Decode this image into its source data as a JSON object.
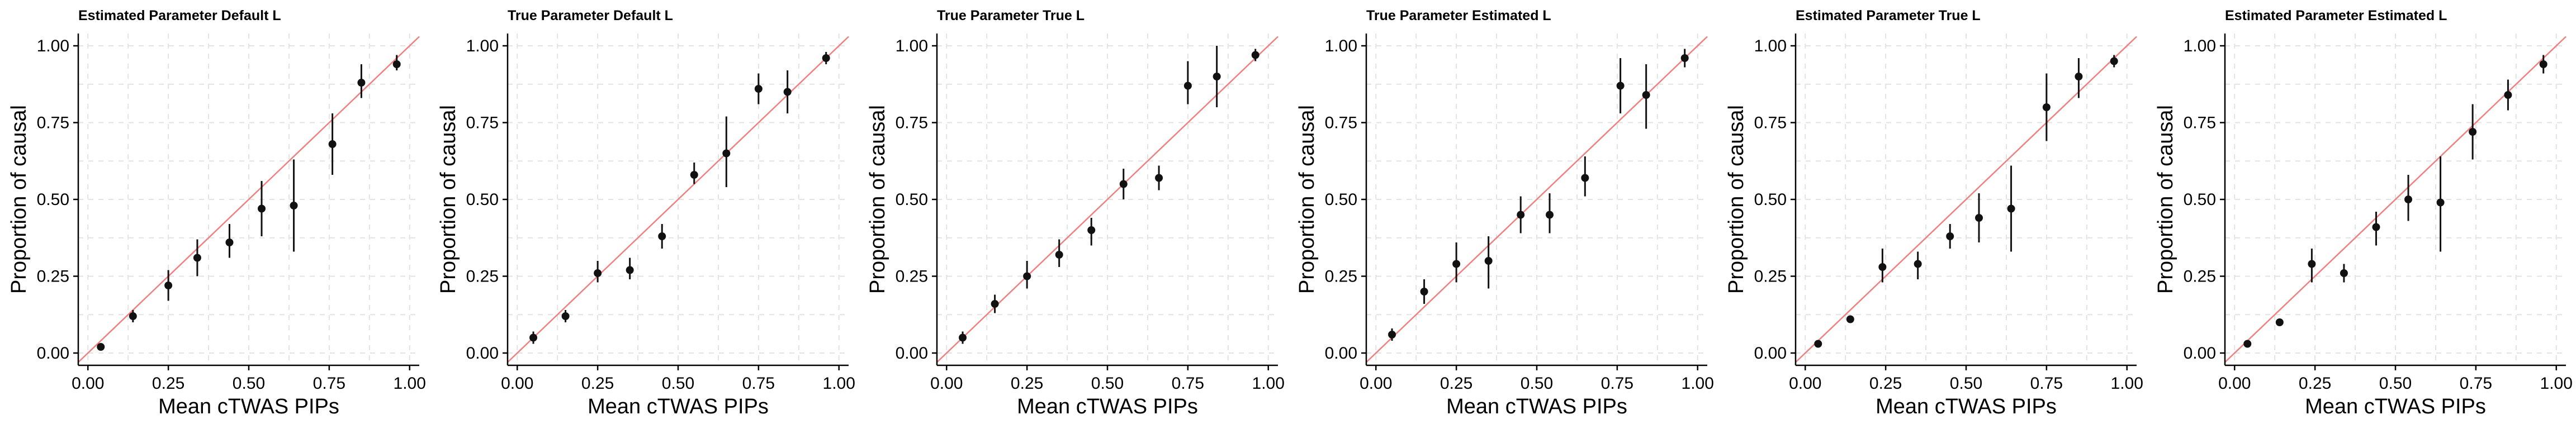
{
  "chart_data": [
    {
      "type": "scatter",
      "title": "Estimated Parameter Default L",
      "xlabel": "Mean cTWAS PIPs",
      "ylabel": "Proportion of causal",
      "xlim": [
        -0.03,
        1.03
      ],
      "ylim": [
        -0.04,
        1.04
      ],
      "xticks": [
        "0.00",
        "0.25",
        "0.50",
        "0.75",
        "1.00"
      ],
      "yticks": [
        "0.00",
        "0.25",
        "0.50",
        "0.75",
        "1.00"
      ],
      "grid": true,
      "reference_line": "y = x",
      "colors": {
        "points": "#111111",
        "reference_line": "#f08080",
        "grid": "#e3e3e3"
      },
      "points": [
        {
          "x": 0.04,
          "y": 0.02,
          "lo": 0.015,
          "hi": 0.025
        },
        {
          "x": 0.14,
          "y": 0.12,
          "lo": 0.1,
          "hi": 0.14
        },
        {
          "x": 0.25,
          "y": 0.22,
          "lo": 0.17,
          "hi": 0.27
        },
        {
          "x": 0.34,
          "y": 0.31,
          "lo": 0.25,
          "hi": 0.37
        },
        {
          "x": 0.44,
          "y": 0.36,
          "lo": 0.31,
          "hi": 0.42
        },
        {
          "x": 0.54,
          "y": 0.47,
          "lo": 0.38,
          "hi": 0.56
        },
        {
          "x": 0.64,
          "y": 0.48,
          "lo": 0.33,
          "hi": 0.63
        },
        {
          "x": 0.76,
          "y": 0.68,
          "lo": 0.58,
          "hi": 0.78
        },
        {
          "x": 0.85,
          "y": 0.88,
          "lo": 0.83,
          "hi": 0.94
        },
        {
          "x": 0.96,
          "y": 0.94,
          "lo": 0.92,
          "hi": 0.97
        }
      ]
    },
    {
      "type": "scatter",
      "title": "True Parameter Default L",
      "xlabel": "Mean cTWAS PIPs",
      "ylabel": "Proportion of causal",
      "xlim": [
        -0.03,
        1.03
      ],
      "ylim": [
        -0.04,
        1.04
      ],
      "xticks": [
        "0.00",
        "0.25",
        "0.50",
        "0.75",
        "1.00"
      ],
      "yticks": [
        "0.00",
        "0.25",
        "0.50",
        "0.75",
        "1.00"
      ],
      "grid": true,
      "reference_line": "y = x",
      "colors": {
        "points": "#111111",
        "reference_line": "#f08080",
        "grid": "#e3e3e3"
      },
      "points": [
        {
          "x": 0.05,
          "y": 0.05,
          "lo": 0.03,
          "hi": 0.07
        },
        {
          "x": 0.15,
          "y": 0.12,
          "lo": 0.1,
          "hi": 0.14
        },
        {
          "x": 0.25,
          "y": 0.26,
          "lo": 0.23,
          "hi": 0.3
        },
        {
          "x": 0.35,
          "y": 0.27,
          "lo": 0.24,
          "hi": 0.31
        },
        {
          "x": 0.45,
          "y": 0.38,
          "lo": 0.34,
          "hi": 0.42
        },
        {
          "x": 0.55,
          "y": 0.58,
          "lo": 0.55,
          "hi": 0.62
        },
        {
          "x": 0.65,
          "y": 0.65,
          "lo": 0.54,
          "hi": 0.77
        },
        {
          "x": 0.75,
          "y": 0.86,
          "lo": 0.81,
          "hi": 0.91
        },
        {
          "x": 0.84,
          "y": 0.85,
          "lo": 0.78,
          "hi": 0.92
        },
        {
          "x": 0.96,
          "y": 0.96,
          "lo": 0.94,
          "hi": 0.98
        }
      ]
    },
    {
      "type": "scatter",
      "title": "True Parameter True L",
      "xlabel": "Mean cTWAS PIPs",
      "ylabel": "Proportion of causal",
      "xlim": [
        -0.03,
        1.03
      ],
      "ylim": [
        -0.04,
        1.04
      ],
      "xticks": [
        "0.00",
        "0.25",
        "0.50",
        "0.75",
        "1.00"
      ],
      "yticks": [
        "0.00",
        "0.25",
        "0.50",
        "0.75",
        "1.00"
      ],
      "grid": true,
      "reference_line": "y = x",
      "colors": {
        "points": "#111111",
        "reference_line": "#f08080",
        "grid": "#e3e3e3"
      },
      "points": [
        {
          "x": 0.05,
          "y": 0.05,
          "lo": 0.03,
          "hi": 0.07
        },
        {
          "x": 0.15,
          "y": 0.16,
          "lo": 0.13,
          "hi": 0.19
        },
        {
          "x": 0.25,
          "y": 0.25,
          "lo": 0.21,
          "hi": 0.3
        },
        {
          "x": 0.35,
          "y": 0.32,
          "lo": 0.28,
          "hi": 0.37
        },
        {
          "x": 0.45,
          "y": 0.4,
          "lo": 0.35,
          "hi": 0.44
        },
        {
          "x": 0.55,
          "y": 0.55,
          "lo": 0.5,
          "hi": 0.6
        },
        {
          "x": 0.66,
          "y": 0.57,
          "lo": 0.53,
          "hi": 0.61
        },
        {
          "x": 0.75,
          "y": 0.87,
          "lo": 0.81,
          "hi": 0.95
        },
        {
          "x": 0.84,
          "y": 0.9,
          "lo": 0.8,
          "hi": 1.0
        },
        {
          "x": 0.96,
          "y": 0.97,
          "lo": 0.95,
          "hi": 0.99
        }
      ]
    },
    {
      "type": "scatter",
      "title": "True Parameter Estimated L",
      "xlabel": "Mean cTWAS PIPs",
      "ylabel": "Proportion of causal",
      "xlim": [
        -0.03,
        1.03
      ],
      "ylim": [
        -0.04,
        1.04
      ],
      "xticks": [
        "0.00",
        "0.25",
        "0.50",
        "0.75",
        "1.00"
      ],
      "yticks": [
        "0.00",
        "0.25",
        "0.50",
        "0.75",
        "1.00"
      ],
      "grid": true,
      "reference_line": "y = x",
      "colors": {
        "points": "#111111",
        "reference_line": "#f08080",
        "grid": "#e3e3e3"
      },
      "points": [
        {
          "x": 0.05,
          "y": 0.06,
          "lo": 0.04,
          "hi": 0.08
        },
        {
          "x": 0.15,
          "y": 0.2,
          "lo": 0.16,
          "hi": 0.24
        },
        {
          "x": 0.25,
          "y": 0.29,
          "lo": 0.23,
          "hi": 0.36
        },
        {
          "x": 0.35,
          "y": 0.3,
          "lo": 0.21,
          "hi": 0.38
        },
        {
          "x": 0.45,
          "y": 0.45,
          "lo": 0.39,
          "hi": 0.51
        },
        {
          "x": 0.54,
          "y": 0.45,
          "lo": 0.39,
          "hi": 0.52
        },
        {
          "x": 0.65,
          "y": 0.57,
          "lo": 0.51,
          "hi": 0.64
        },
        {
          "x": 0.76,
          "y": 0.87,
          "lo": 0.78,
          "hi": 0.96
        },
        {
          "x": 0.84,
          "y": 0.84,
          "lo": 0.73,
          "hi": 0.94
        },
        {
          "x": 0.96,
          "y": 0.96,
          "lo": 0.93,
          "hi": 0.99
        }
      ]
    },
    {
      "type": "scatter",
      "title": "Estimated Parameter True L",
      "xlabel": "Mean cTWAS PIPs",
      "ylabel": "Proportion of causal",
      "xlim": [
        -0.03,
        1.03
      ],
      "ylim": [
        -0.04,
        1.04
      ],
      "xticks": [
        "0.00",
        "0.25",
        "0.50",
        "0.75",
        "1.00"
      ],
      "yticks": [
        "0.00",
        "0.25",
        "0.50",
        "0.75",
        "1.00"
      ],
      "grid": true,
      "reference_line": "y = x",
      "colors": {
        "points": "#111111",
        "reference_line": "#f08080",
        "grid": "#e3e3e3"
      },
      "points": [
        {
          "x": 0.04,
          "y": 0.03,
          "lo": 0.02,
          "hi": 0.04
        },
        {
          "x": 0.14,
          "y": 0.11,
          "lo": 0.1,
          "hi": 0.12
        },
        {
          "x": 0.24,
          "y": 0.28,
          "lo": 0.23,
          "hi": 0.34
        },
        {
          "x": 0.35,
          "y": 0.29,
          "lo": 0.24,
          "hi": 0.33
        },
        {
          "x": 0.45,
          "y": 0.38,
          "lo": 0.34,
          "hi": 0.42
        },
        {
          "x": 0.54,
          "y": 0.44,
          "lo": 0.36,
          "hi": 0.52
        },
        {
          "x": 0.64,
          "y": 0.47,
          "lo": 0.33,
          "hi": 0.61
        },
        {
          "x": 0.75,
          "y": 0.8,
          "lo": 0.69,
          "hi": 0.91
        },
        {
          "x": 0.85,
          "y": 0.9,
          "lo": 0.83,
          "hi": 0.96
        },
        {
          "x": 0.96,
          "y": 0.95,
          "lo": 0.93,
          "hi": 0.97
        }
      ]
    },
    {
      "type": "scatter",
      "title": "Estimated Parameter Estimated L",
      "xlabel": "Mean cTWAS PIPs",
      "ylabel": "Proportion of causal",
      "xlim": [
        -0.03,
        1.03
      ],
      "ylim": [
        -0.04,
        1.04
      ],
      "xticks": [
        "0.00",
        "0.25",
        "0.50",
        "0.75",
        "1.00"
      ],
      "yticks": [
        "0.00",
        "0.25",
        "0.50",
        "0.75",
        "1.00"
      ],
      "grid": true,
      "reference_line": "y = x",
      "colors": {
        "points": "#111111",
        "reference_line": "#f08080",
        "grid": "#e3e3e3"
      },
      "points": [
        {
          "x": 0.04,
          "y": 0.03,
          "lo": 0.02,
          "hi": 0.04
        },
        {
          "x": 0.14,
          "y": 0.1,
          "lo": 0.09,
          "hi": 0.11
        },
        {
          "x": 0.24,
          "y": 0.29,
          "lo": 0.23,
          "hi": 0.34
        },
        {
          "x": 0.34,
          "y": 0.26,
          "lo": 0.23,
          "hi": 0.29
        },
        {
          "x": 0.44,
          "y": 0.41,
          "lo": 0.35,
          "hi": 0.46
        },
        {
          "x": 0.54,
          "y": 0.5,
          "lo": 0.43,
          "hi": 0.58
        },
        {
          "x": 0.64,
          "y": 0.49,
          "lo": 0.33,
          "hi": 0.64
        },
        {
          "x": 0.74,
          "y": 0.72,
          "lo": 0.63,
          "hi": 0.81
        },
        {
          "x": 0.85,
          "y": 0.84,
          "lo": 0.79,
          "hi": 0.89
        },
        {
          "x": 0.96,
          "y": 0.94,
          "lo": 0.91,
          "hi": 0.97
        }
      ]
    }
  ]
}
